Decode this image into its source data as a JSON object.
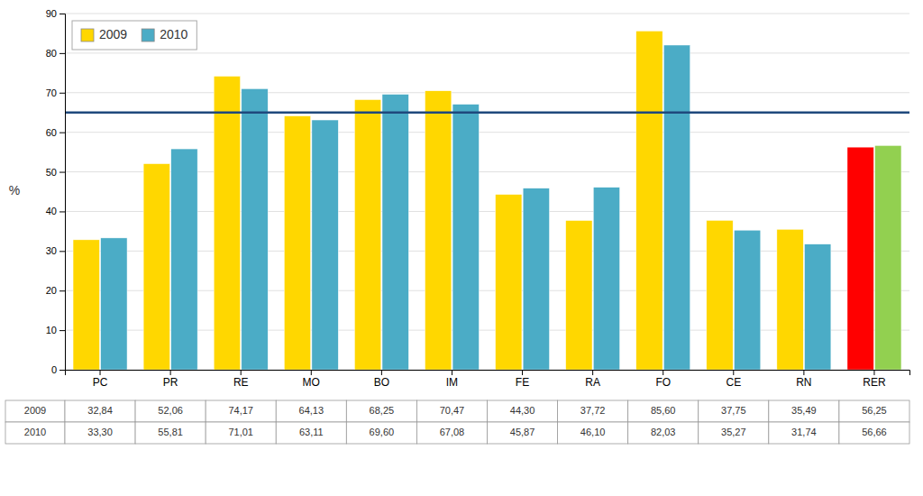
{
  "chart_data": {
    "type": "bar",
    "categories": [
      "PC",
      "PR",
      "RE",
      "MO",
      "BO",
      "IM",
      "FE",
      "RA",
      "FO",
      "CE",
      "RN",
      "RER"
    ],
    "series": [
      {
        "name": "2009",
        "color": "#FFD700",
        "colors": [
          "#FFD700",
          "#FFD700",
          "#FFD700",
          "#FFD700",
          "#FFD700",
          "#FFD700",
          "#FFD700",
          "#FFD700",
          "#FFD700",
          "#FFD700",
          "#FFD700",
          "#FF0000"
        ],
        "values": [
          32.84,
          52.06,
          74.17,
          64.13,
          68.25,
          70.47,
          44.3,
          37.72,
          85.6,
          37.75,
          35.49,
          56.25
        ],
        "value_labels": [
          "32,84",
          "52,06",
          "74,17",
          "64,13",
          "68,25",
          "70,47",
          "44,30",
          "37,72",
          "85,60",
          "37,75",
          "35,49",
          "56,25"
        ]
      },
      {
        "name": "2010",
        "color": "#4BACC6",
        "colors": [
          "#4BACC6",
          "#4BACC6",
          "#4BACC6",
          "#4BACC6",
          "#4BACC6",
          "#4BACC6",
          "#4BACC6",
          "#4BACC6",
          "#4BACC6",
          "#4BACC6",
          "#4BACC6",
          "#92D050"
        ],
        "values": [
          33.3,
          55.81,
          71.01,
          63.11,
          69.6,
          67.08,
          45.87,
          46.1,
          82.03,
          35.27,
          31.74,
          56.66
        ],
        "value_labels": [
          "33,30",
          "55,81",
          "71,01",
          "63,11",
          "69,60",
          "67,08",
          "45,87",
          "46,10",
          "82,03",
          "35,27",
          "31,74",
          "56,66"
        ]
      }
    ],
    "ylabel": "%",
    "ylim": [
      0,
      90
    ],
    "yticks": [
      0,
      10,
      20,
      30,
      40,
      50,
      60,
      70,
      80,
      90
    ],
    "grid": true,
    "legend": "top-left",
    "reference_line": {
      "value": 65,
      "color": "#1F497D"
    }
  }
}
